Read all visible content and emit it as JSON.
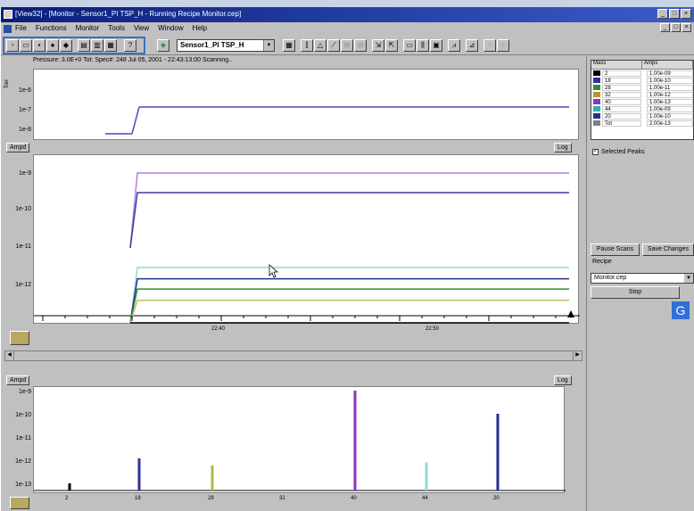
{
  "window": {
    "title": "[View32] - [Monitor - Sensor1_PI TSP_H - Running Recipe Monitor.cep]"
  },
  "menu": {
    "items": [
      "File",
      "Functions",
      "Monitor",
      "Tools",
      "View",
      "Window",
      "Help"
    ]
  },
  "toolbar": {
    "sensor_select": "Sensor1_PI TSP_H",
    "help_label": "?"
  },
  "badges": {
    "i": "I",
    "h": "H",
    "g": "G"
  },
  "monitor": {
    "status_text": "Pressure: 3.0E+0    Tot: Spec#: 248  Jul 05, 2001 - 22:43:13:00  Scanning..",
    "top_plot": {
      "y_axis_label": "Torr",
      "y_ticks": [
        "1e-6",
        "1e-7",
        "1e-8"
      ]
    },
    "main_plot": {
      "ampu_label": "Ampd",
      "log_label": "Log",
      "y_ticks": [
        "1e-9",
        "1e-10",
        "1e-11",
        "1e-12"
      ],
      "x_ticks": [
        "22:40",
        "22:50"
      ]
    },
    "bar_plot": {
      "ampu_label": "Ampd",
      "log_label": "Log",
      "y_ticks": [
        "1e-9",
        "1e-10",
        "1e-11",
        "1e-12",
        "1e-13"
      ],
      "x_ticks": [
        "2",
        "18",
        "28",
        "32",
        "40",
        "44",
        "20"
      ]
    }
  },
  "channels": {
    "headers": [
      "Mass",
      "Amps"
    ],
    "rows": [
      {
        "name": "2",
        "value": "1.00e-09",
        "color": "#000000"
      },
      {
        "name": "18",
        "value": "1.00e-10",
        "color": "#3030a0"
      },
      {
        "name": "28",
        "value": "1.00e-11",
        "color": "#2f8f2f"
      },
      {
        "name": "32",
        "value": "1.00e-12",
        "color": "#c09030"
      },
      {
        "name": "40",
        "value": "1.00e-13",
        "color": "#9030c0"
      },
      {
        "name": "44",
        "value": "1.00e-09",
        "color": "#30b0b0"
      },
      {
        "name": "20",
        "value": "1.00e-10",
        "color": "#203090"
      },
      {
        "name": "Tot",
        "value": "2.00e-13",
        "color": "#808080"
      }
    ]
  },
  "right_panel": {
    "selected_peaks_label": "Selected Peaks",
    "pause_button": "Pause Scans",
    "save_changes_button": "Save Changes",
    "recipe_label": "Recipe",
    "recipe_value": "Monitor.cep",
    "stop_button": "Stop"
  },
  "chart_data": [
    {
      "type": "line",
      "title": "",
      "ylabel": "Torr",
      "y_scale": "log",
      "y_ticks": [
        "1e-6",
        "1e-7",
        "1e-8"
      ],
      "series": [
        {
          "values": [
            "1e-8",
            "2e-7",
            "2e-7"
          ],
          "color": "#5a3fc0"
        }
      ]
    },
    {
      "type": "line",
      "title": "",
      "ylabel": "",
      "y_scale": "log",
      "y_ticks": [
        "1e-9",
        "1e-10",
        "1e-11",
        "1e-12"
      ],
      "x_ticks": [
        "22:40",
        "22:50"
      ],
      "series": [
        {
          "values": [
            "1e-11",
            "1e-9",
            "1e-9"
          ],
          "color": "#b080e0"
        },
        {
          "values": [
            "1e-11",
            "3e-10",
            "3e-10"
          ],
          "color": "#3a3aa8"
        },
        {
          "values": [
            "1e-13",
            "3e-12",
            "3e-12"
          ],
          "color": "#90d8d8"
        },
        {
          "values": [
            "1e-13",
            "1.5e-12",
            "1.5e-12"
          ],
          "color": "#203090"
        },
        {
          "values": [
            "1e-13",
            "8e-13",
            "8e-13"
          ],
          "color": "#2f8f2f"
        },
        {
          "values": [
            "1e-13",
            "4e-13",
            "4e-13"
          ],
          "color": "#c0c060"
        },
        {
          "values": [
            "1e-13",
            "1e-13",
            "1e-13"
          ],
          "color": "#000000"
        }
      ]
    },
    {
      "type": "bar",
      "title": "",
      "y_scale": "log",
      "y_ticks": [
        "1e-9",
        "1e-10",
        "1e-11",
        "1e-12",
        "1e-13"
      ],
      "categories": [
        "2",
        "18",
        "28",
        "32",
        "40",
        "44",
        "20"
      ],
      "values": [
        1e-13,
        1.2e-12,
        6e-13,
        0,
        1e-09,
        8e-13,
        1e-10
      ],
      "colors": [
        "#000000",
        "#3030a0",
        "#a0c040",
        "#c09030",
        "#9030c0",
        "#90d8d8",
        "#203090"
      ]
    }
  ]
}
